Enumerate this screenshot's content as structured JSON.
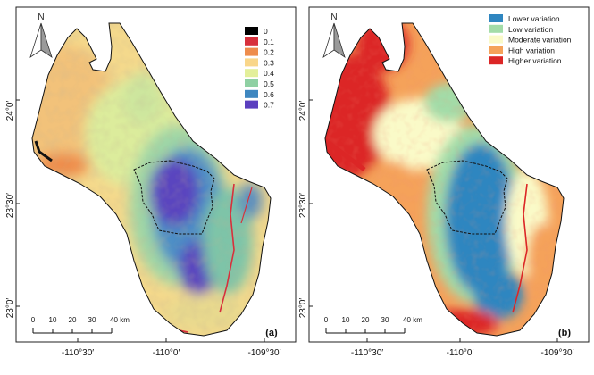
{
  "map_a": {
    "panel_tag": "(a)",
    "north_label": "N",
    "legend": [
      {
        "label": "0",
        "color": "#000000"
      },
      {
        "label": "0.1",
        "color": "#d7303c"
      },
      {
        "label": "0.2",
        "color": "#ee8c4c"
      },
      {
        "label": "0.3",
        "color": "#f9d68a"
      },
      {
        "label": "0.4",
        "color": "#e3ef9a"
      },
      {
        "label": "0.5",
        "color": "#8fd0a3"
      },
      {
        "label": "0.6",
        "color": "#3f87c0"
      },
      {
        "label": "0.7",
        "color": "#5b3fbf"
      }
    ],
    "scale_ticks": [
      "0",
      "10",
      "20",
      "30",
      "40 km"
    ],
    "lon_labels": [
      "-110°30′",
      "-110°0′",
      "-109°30′"
    ],
    "lat_labels": [
      "24°0′",
      "23°30′",
      "23°0′"
    ]
  },
  "map_b": {
    "panel_tag": "(b)",
    "north_label": "N",
    "legend": [
      {
        "label": "Lower variation",
        "color": "#2f86c0"
      },
      {
        "label": "Low variation",
        "color": "#a3dca8"
      },
      {
        "label": "Moderate variation",
        "color": "#fafac8"
      },
      {
        "label": "High variation",
        "color": "#f5a25a"
      },
      {
        "label": "Higher variation",
        "color": "#dc2626"
      }
    ],
    "scale_ticks": [
      "0",
      "10",
      "20",
      "30",
      "40 km"
    ],
    "lon_labels": [
      "-110°30′",
      "-110°0′",
      "-109°30′"
    ],
    "lat_labels": [
      "24°0′",
      "23°30′",
      "23°0′"
    ]
  }
}
